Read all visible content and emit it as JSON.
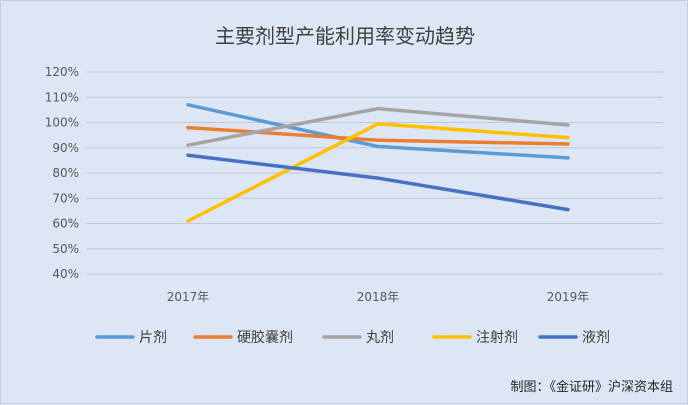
{
  "chart_data": {
    "type": "line",
    "title": "主要剂型产能利用率变动趋势",
    "categories": [
      "2017年",
      "2018年",
      "2019年"
    ],
    "y_ticks": [
      "40%",
      "50%",
      "60%",
      "70%",
      "80%",
      "90%",
      "100%",
      "110%",
      "120%"
    ],
    "ylim": [
      40,
      120
    ],
    "y_unit": "%",
    "grid": true,
    "legend_position": "bottom",
    "series": [
      {
        "name": "片剂",
        "color": "#5b9bd5",
        "values": [
          107,
          90.5,
          86
        ]
      },
      {
        "name": "硬胶囊剂",
        "color": "#ed7d31",
        "values": [
          98,
          93,
          91.5
        ]
      },
      {
        "name": "丸剂",
        "color": "#a5a5a5",
        "values": [
          91,
          105.5,
          99
        ]
      },
      {
        "name": "注射剂",
        "color": "#ffc000",
        "values": [
          61,
          99.5,
          94
        ]
      },
      {
        "name": "液剂",
        "color": "#4472c4",
        "values": [
          87,
          78,
          65.5
        ]
      }
    ]
  },
  "credit": "制图：《金证研》沪深资本组"
}
